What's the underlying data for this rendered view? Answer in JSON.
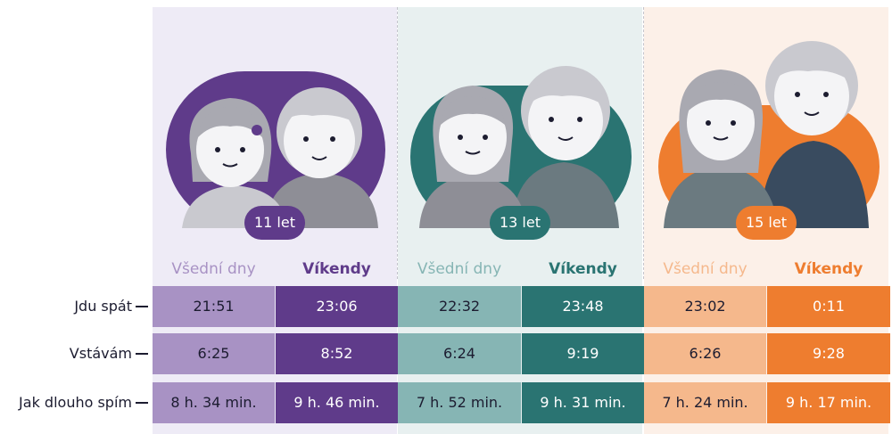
{
  "chart_data": {
    "type": "table",
    "groups": [
      {
        "age_label": "11 let",
        "colors": {
          "panel": "#eeebf6",
          "light": "#a892c4",
          "dark": "#5f3b8a",
          "text_light": "#a892c4",
          "text_dark": "#5f3b8a"
        }
      },
      {
        "age_label": "13 let",
        "colors": {
          "panel": "#e8f0f0",
          "light": "#86b5b4",
          "dark": "#2a7472",
          "text_light": "#86b5b4",
          "text_dark": "#2a7472"
        }
      },
      {
        "age_label": "15 let",
        "colors": {
          "panel": "#fcf0e8",
          "light": "#f5b88c",
          "dark": "#ee7d2f",
          "text_light": "#f5b88c",
          "text_dark": "#ee7d2f"
        }
      }
    ],
    "column_headers": [
      "Všední dny",
      "Víkendy"
    ],
    "rows": [
      {
        "label": "Jdu spát",
        "values": [
          "21:51",
          "23:06",
          "22:32",
          "23:48",
          "23:02",
          "0:11"
        ]
      },
      {
        "label": "Vstávám",
        "values": [
          "6:25",
          "8:52",
          "6:24",
          "9:19",
          "6:26",
          "9:28"
        ]
      },
      {
        "label": "Jak dlouho spím",
        "values": [
          "8 h. 34 min.",
          "9 h. 46 min.",
          "7 h. 52 min.",
          "9 h. 31 min.",
          "7 h. 24 min.",
          "9 h. 17 min."
        ]
      }
    ]
  }
}
